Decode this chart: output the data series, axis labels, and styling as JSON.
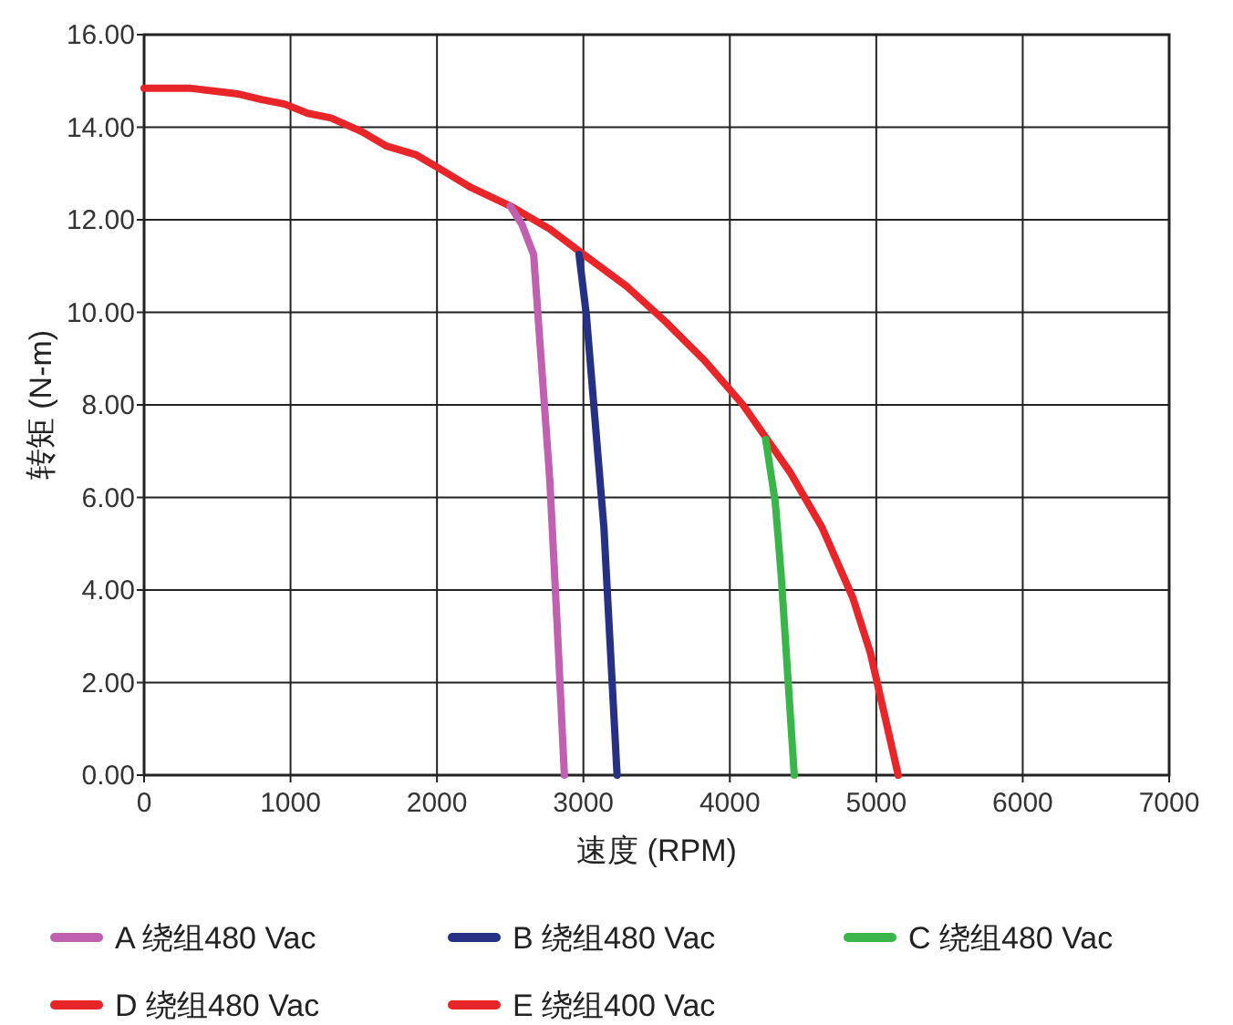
{
  "chart_data": {
    "type": "line",
    "xlabel": "速度 (RPM)",
    "ylabel": "转矩 (N-m)",
    "xlim": [
      0,
      7000
    ],
    "xticks": [
      0,
      1000,
      2000,
      3000,
      4000,
      5000,
      6000,
      7000
    ],
    "ylim": [
      0,
      16
    ],
    "yticks": [
      {
        "value": 0,
        "label": "0.00"
      },
      {
        "value": 2,
        "label": "2.00"
      },
      {
        "value": 4,
        "label": "4.00"
      },
      {
        "value": 6,
        "label": "6.00"
      },
      {
        "value": 8,
        "label": "8.00"
      },
      {
        "value": 10,
        "label": "10.00"
      },
      {
        "value": 12,
        "label": "12.00"
      },
      {
        "value": 14,
        "label": "14.00"
      },
      {
        "value": 16,
        "label": "16.00"
      }
    ],
    "grid": true,
    "legend": "bottom",
    "marker": "none",
    "line_style": "solid",
    "series": [
      {
        "name": "A 绕组480 Vac",
        "color": "#c060b0",
        "x": [
          2500,
          2580,
          2660,
          2770,
          2820,
          2870
        ],
        "values": [
          12.3,
          11.9,
          11.25,
          6.4,
          3.3,
          0
        ]
      },
      {
        "name": "B 绕组480 Vac",
        "color": "#263085",
        "x": [
          2970,
          3020,
          3140,
          3230
        ],
        "values": [
          11.25,
          9.95,
          5.35,
          0
        ]
      },
      {
        "name": "C 绕组480 Vac",
        "color": "#3ab54a",
        "x": [
          4245,
          4310,
          4350,
          4440
        ],
        "values": [
          7.25,
          5.9,
          4.35,
          0
        ]
      },
      {
        "name": "D 绕组480 Vac",
        "color": "#e8262a",
        "x": [
          0,
          320,
          640,
          800,
          960,
          1117,
          1277,
          1490,
          1650,
          1860,
          2020,
          2230,
          2500,
          2770,
          2980,
          3300,
          3560,
          3830,
          4090,
          4410,
          4630,
          4840,
          4960,
          5150
        ],
        "values": [
          14.84,
          14.84,
          14.72,
          14.6,
          14.5,
          14.3,
          14.2,
          13.9,
          13.6,
          13.4,
          13.1,
          12.7,
          12.3,
          11.8,
          11.3,
          10.55,
          9.8,
          8.95,
          8.0,
          6.55,
          5.35,
          3.83,
          2.64,
          0
        ]
      },
      {
        "name": "E 绕组400 Vac",
        "color": "#e8262a"
      }
    ]
  }
}
